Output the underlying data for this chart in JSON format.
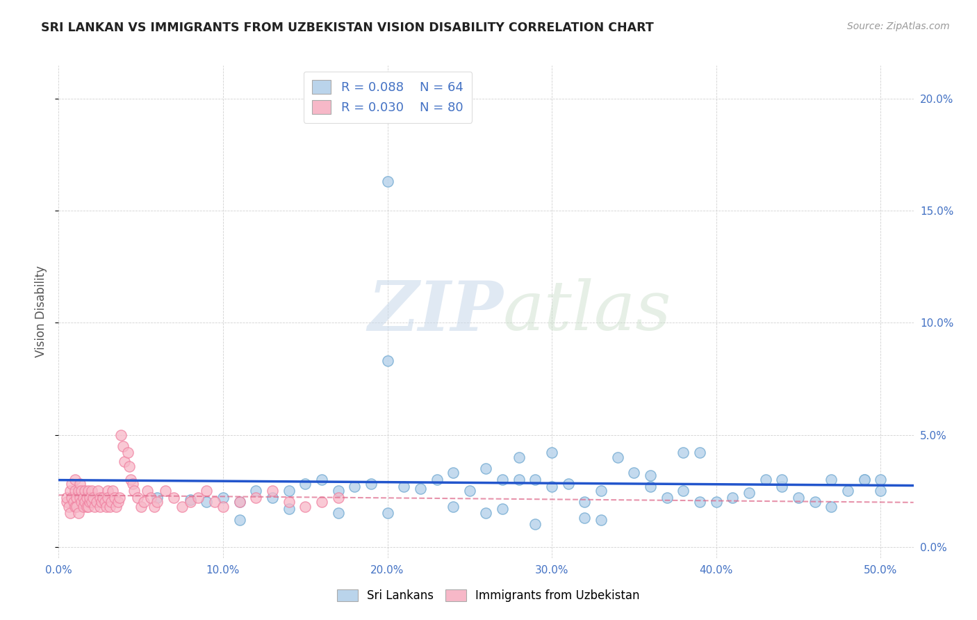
{
  "title": "SRI LANKAN VS IMMIGRANTS FROM UZBEKISTAN VISION DISABILITY CORRELATION CHART",
  "source": "Source: ZipAtlas.com",
  "ylabel": "Vision Disability",
  "xlim": [
    0.0,
    0.52
  ],
  "ylim": [
    -0.005,
    0.215
  ],
  "xticks": [
    0.0,
    0.1,
    0.2,
    0.3,
    0.4,
    0.5
  ],
  "xticklabels": [
    "0.0%",
    "10.0%",
    "20.0%",
    "30.0%",
    "40.0%",
    "50.0%"
  ],
  "yticks": [
    0.0,
    0.05,
    0.1,
    0.15,
    0.2
  ],
  "yticklabels_right": [
    "0.0%",
    "5.0%",
    "10.0%",
    "15.0%",
    "20.0%"
  ],
  "blue_R": 0.088,
  "blue_N": 64,
  "pink_R": 0.03,
  "pink_N": 80,
  "legend_labels": [
    "Sri Lankans",
    "Immigrants from Uzbekistan"
  ],
  "blue_color": "#bad4eb",
  "pink_color": "#f7b8c8",
  "blue_edge_color": "#7aafd4",
  "pink_edge_color": "#f080a0",
  "line_blue_color": "#2255cc",
  "line_pink_color": "#dd6688",
  "title_color": "#222222",
  "axis_label_color": "#4472c4",
  "watermark_zip": "ZIP",
  "watermark_atlas": "atlas",
  "blue_scatter_x": [
    0.2,
    0.2,
    0.06,
    0.08,
    0.09,
    0.1,
    0.11,
    0.12,
    0.13,
    0.14,
    0.15,
    0.16,
    0.17,
    0.18,
    0.19,
    0.21,
    0.22,
    0.23,
    0.24,
    0.26,
    0.27,
    0.28,
    0.29,
    0.3,
    0.31,
    0.28,
    0.3,
    0.32,
    0.35,
    0.36,
    0.38,
    0.39,
    0.4,
    0.42,
    0.44,
    0.45,
    0.47,
    0.48,
    0.49,
    0.36,
    0.24,
    0.26,
    0.29,
    0.32,
    0.11,
    0.14,
    0.17,
    0.2,
    0.39,
    0.43,
    0.46,
    0.49,
    0.5,
    0.25,
    0.27,
    0.33,
    0.34,
    0.37,
    0.41,
    0.44,
    0.47,
    0.33,
    0.38,
    0.5
  ],
  "blue_scatter_y": [
    0.163,
    0.083,
    0.022,
    0.021,
    0.02,
    0.022,
    0.02,
    0.025,
    0.022,
    0.025,
    0.028,
    0.03,
    0.025,
    0.027,
    0.028,
    0.027,
    0.026,
    0.03,
    0.033,
    0.035,
    0.03,
    0.03,
    0.03,
    0.027,
    0.028,
    0.04,
    0.042,
    0.02,
    0.033,
    0.027,
    0.025,
    0.02,
    0.02,
    0.024,
    0.027,
    0.022,
    0.03,
    0.025,
    0.03,
    0.032,
    0.018,
    0.015,
    0.01,
    0.013,
    0.012,
    0.017,
    0.015,
    0.015,
    0.042,
    0.03,
    0.02,
    0.03,
    0.025,
    0.025,
    0.017,
    0.025,
    0.04,
    0.022,
    0.022,
    0.03,
    0.018,
    0.012,
    0.042,
    0.03
  ],
  "pink_scatter_x": [
    0.005,
    0.005,
    0.006,
    0.007,
    0.007,
    0.008,
    0.008,
    0.009,
    0.01,
    0.01,
    0.01,
    0.011,
    0.011,
    0.012,
    0.012,
    0.013,
    0.013,
    0.014,
    0.014,
    0.015,
    0.015,
    0.016,
    0.016,
    0.017,
    0.017,
    0.018,
    0.018,
    0.019,
    0.019,
    0.02,
    0.02,
    0.021,
    0.022,
    0.023,
    0.024,
    0.025,
    0.025,
    0.026,
    0.027,
    0.028,
    0.029,
    0.03,
    0.03,
    0.031,
    0.032,
    0.033,
    0.034,
    0.035,
    0.036,
    0.037,
    0.038,
    0.039,
    0.04,
    0.042,
    0.043,
    0.044,
    0.045,
    0.046,
    0.048,
    0.05,
    0.052,
    0.054,
    0.056,
    0.058,
    0.06,
    0.065,
    0.07,
    0.075,
    0.08,
    0.085,
    0.09,
    0.095,
    0.1,
    0.11,
    0.12,
    0.13,
    0.14,
    0.15,
    0.16,
    0.17
  ],
  "pink_scatter_y": [
    0.02,
    0.022,
    0.018,
    0.025,
    0.015,
    0.022,
    0.028,
    0.02,
    0.018,
    0.025,
    0.03,
    0.022,
    0.018,
    0.025,
    0.015,
    0.022,
    0.028,
    0.02,
    0.025,
    0.018,
    0.022,
    0.02,
    0.025,
    0.018,
    0.022,
    0.025,
    0.018,
    0.02,
    0.022,
    0.02,
    0.025,
    0.022,
    0.018,
    0.02,
    0.025,
    0.022,
    0.018,
    0.02,
    0.022,
    0.02,
    0.018,
    0.025,
    0.022,
    0.018,
    0.02,
    0.025,
    0.022,
    0.018,
    0.02,
    0.022,
    0.05,
    0.045,
    0.038,
    0.042,
    0.036,
    0.03,
    0.028,
    0.025,
    0.022,
    0.018,
    0.02,
    0.025,
    0.022,
    0.018,
    0.02,
    0.025,
    0.022,
    0.018,
    0.02,
    0.022,
    0.025,
    0.02,
    0.018,
    0.02,
    0.022,
    0.025,
    0.02,
    0.018,
    0.02,
    0.022
  ]
}
